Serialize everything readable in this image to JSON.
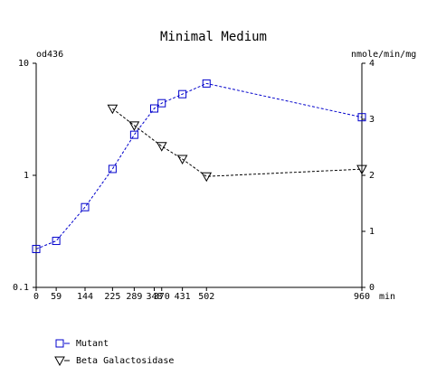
{
  "chart_data": {
    "type": "line",
    "title": "Minimal Medium",
    "x_label": "min",
    "y_label": "od436",
    "y2_label": "nmole/min/mg",
    "xlim": [
      0,
      960
    ],
    "xticks": [
      0,
      59,
      144,
      225,
      289,
      348,
      370,
      431,
      502,
      960
    ],
    "ylim": [
      0.1,
      10
    ],
    "yticks": [
      0.1,
      1,
      10
    ],
    "y_log": true,
    "y2lim": [
      0,
      4
    ],
    "y2ticks": [
      0,
      1,
      2,
      3,
      4
    ],
    "series": [
      {
        "name": "Mutant",
        "color": "#0000cc",
        "axis": "y",
        "x": [
          0,
          59,
          144,
          225,
          289,
          348,
          370,
          431,
          502,
          960
        ],
        "values": [
          0.22,
          0.26,
          0.52,
          1.14,
          2.3,
          3.95,
          4.4,
          5.3,
          6.6,
          3.3
        ]
      },
      {
        "name": "Beta Galactosidase",
        "color": "#000000",
        "axis": "y2",
        "x": [
          225,
          289,
          370,
          431,
          502,
          960
        ],
        "values": [
          3.19,
          2.89,
          2.52,
          2.29,
          1.98,
          2.11
        ]
      }
    ]
  }
}
